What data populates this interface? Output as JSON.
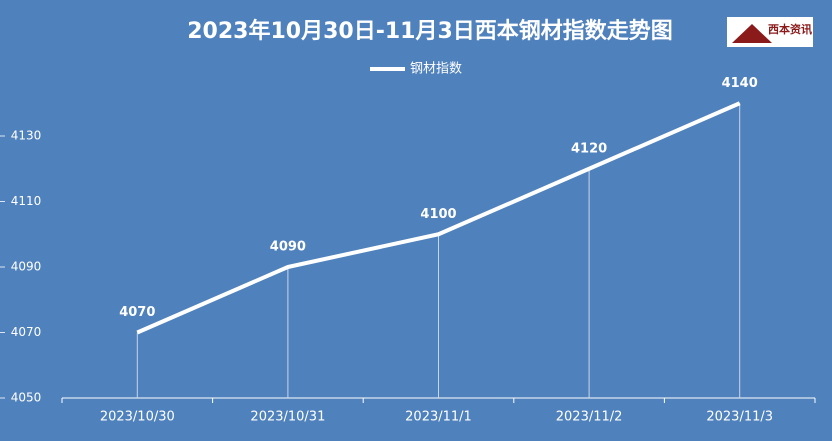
{
  "chart_data": {
    "type": "line",
    "title": "2023年10月30日-11月3日西本钢材指数走势图",
    "logo_text": "西本资讯",
    "categories": [
      "2023/10/30",
      "2023/10/31",
      "2023/11/1",
      "2023/11/2",
      "2023/11/3"
    ],
    "series": [
      {
        "name": "钢材指数",
        "color": "#ffffff",
        "values": [
          4070,
          4090,
          4100,
          4120,
          4140
        ]
      }
    ],
    "ylim": [
      4050,
      4170
    ],
    "yticks": [
      4050,
      4070,
      4090,
      4110,
      4130
    ],
    "drop_lines": true,
    "legend": "top"
  }
}
